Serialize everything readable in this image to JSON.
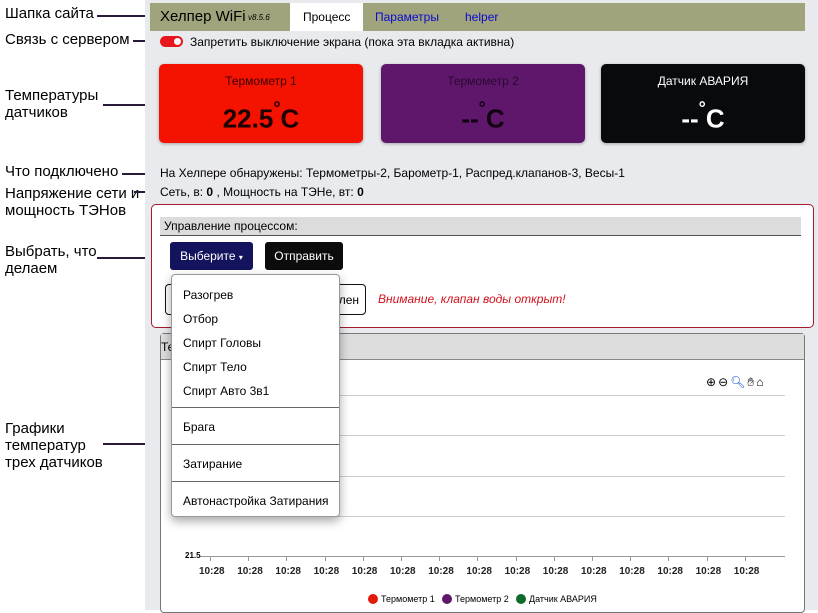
{
  "annotations": [
    "Шапка сайта",
    "Связь с сервером",
    "Температуры датчиков",
    "Что подключено",
    "Напряжение сети и мощность ТЭНов",
    "Выбрать, что делаем",
    "Графики температур трех датчиков"
  ],
  "header": {
    "title": "Хелпер WiFi",
    "version": "v8.5.6",
    "tabs": [
      {
        "label": "Процесс",
        "active": true
      },
      {
        "label": "Параметры"
      },
      {
        "label": "helper"
      }
    ]
  },
  "screen_lock": {
    "label": "Запретить выключение экрана (пока эта вкладка активна)",
    "checked": true,
    "color": "#e8151c"
  },
  "cards": [
    {
      "label": "Термометр 1",
      "value": "22.5",
      "unit": "C",
      "deg": "°",
      "color": "#f41200"
    },
    {
      "label": "Термометр 2",
      "value": "--",
      "unit": "C",
      "deg": "°",
      "color": "#5e176b"
    },
    {
      "label": "Датчик АВАРИЯ",
      "value": "--",
      "unit": "C",
      "deg": "°",
      "color": "#090a0c"
    }
  ],
  "detected": "На Хелпере обнаружены: Термометры-2, Барометр-1, Распред.клапанов-3, Весы-1",
  "power": {
    "net_label": "Сеть, в:",
    "net_value": "0",
    "sep": ",",
    "power_label": "Мощность на ТЭНе, вт:",
    "power_value": "0"
  },
  "control": {
    "title": "Управление процессом:",
    "select_label": "Выберите",
    "send_label": "Отправить",
    "hidden_button_tail": "лен",
    "warning": "Внимание, клапан воды открыт!"
  },
  "dropdown": {
    "items": [
      "Разогрев",
      "Отбор",
      "Спирт Головы",
      "Спирт Тело",
      "Спирт Авто 3в1",
      "Брага",
      "Затирание",
      "Автонастройка Затирания"
    ]
  },
  "chart_panel": {
    "title_visible": "Те"
  },
  "chart_data": {
    "type": "line",
    "ylim_visible_tick": "21.5",
    "x_ticks": [
      "10:28",
      "10:28",
      "10:28",
      "10:28",
      "10:28",
      "10:28",
      "10:28",
      "10:28",
      "10:28",
      "10:28",
      "10:28",
      "10:28",
      "10:28",
      "10:28",
      "10:28"
    ],
    "series": [
      {
        "name": "Термометр 1",
        "color": "#e31a0a"
      },
      {
        "name": "Термометр 2",
        "color": "#5e176b"
      },
      {
        "name": "Датчик АВАРИЯ",
        "color": "#0e6b2c"
      }
    ],
    "grid": true,
    "legend": "bottom",
    "toolbar": [
      "zoom-in-icon",
      "zoom-out-icon",
      "zoom-select-icon",
      "pan-icon",
      "home-icon"
    ]
  }
}
